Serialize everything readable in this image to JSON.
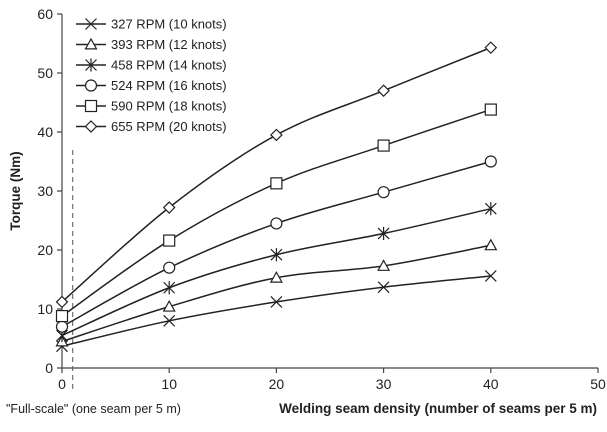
{
  "chart_data": {
    "type": "line",
    "xlabel": "Welding seam density (number of seams per 5 m)",
    "ylabel": "Torque (Nm)",
    "xlim": [
      0,
      50
    ],
    "ylim": [
      0,
      60
    ],
    "x_ticks": [
      "0",
      "10",
      "20",
      "30",
      "40",
      "50"
    ],
    "y_ticks": [
      "0",
      "10",
      "20",
      "30",
      "40",
      "50",
      "60"
    ],
    "grid": false,
    "legend_position": "top-left",
    "annotation": {
      "text": "\"Full-scale\" (one seam per 5 m)",
      "x": 1
    },
    "series": [
      {
        "name": "327 RPM (10 knots)",
        "marker": "x",
        "x": [
          0,
          10,
          20,
          30,
          40
        ],
        "values": [
          3.7,
          8.0,
          11.2,
          13.7,
          15.6
        ]
      },
      {
        "name": "393 RPM (12 knots)",
        "marker": "triangle",
        "x": [
          0,
          10,
          20,
          30,
          40
        ],
        "values": [
          4.5,
          10.4,
          15.3,
          17.3,
          20.8
        ]
      },
      {
        "name": "458 RPM (14 knots)",
        "marker": "star",
        "x": [
          0,
          10,
          20,
          30,
          40
        ],
        "values": [
          5.5,
          13.6,
          19.2,
          22.8,
          27.0
        ]
      },
      {
        "name": "524 RPM (16 knots)",
        "marker": "circle",
        "x": [
          0,
          10,
          20,
          30,
          40
        ],
        "values": [
          7.0,
          17.0,
          24.5,
          29.8,
          35.0
        ]
      },
      {
        "name": "590 RPM (18 knots)",
        "marker": "square",
        "x": [
          0,
          10,
          20,
          30,
          40
        ],
        "values": [
          8.8,
          21.6,
          31.3,
          37.7,
          43.8
        ]
      },
      {
        "name": "655 RPM (20 knots)",
        "marker": "diamond",
        "x": [
          0,
          10,
          20,
          30,
          40
        ],
        "values": [
          11.2,
          27.2,
          39.5,
          47.0,
          54.3
        ]
      }
    ]
  }
}
